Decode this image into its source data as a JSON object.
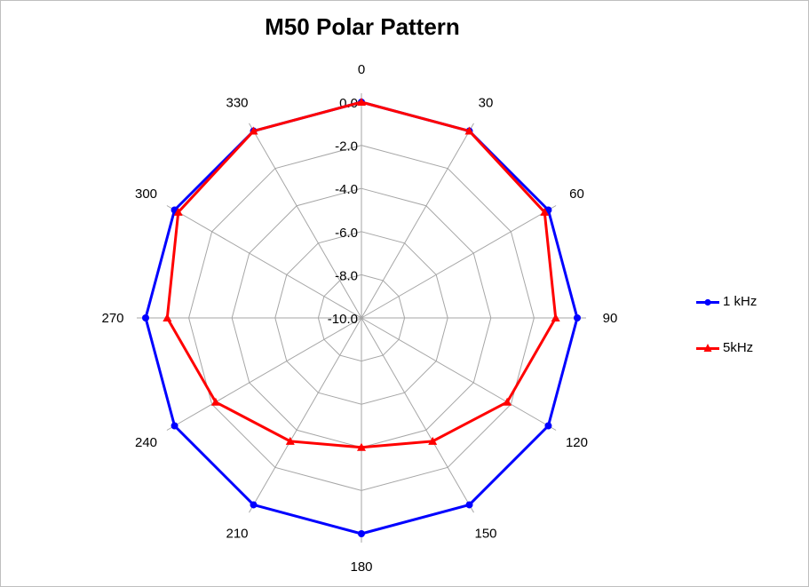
{
  "chart_data": {
    "type": "radar",
    "title": "M50 Polar Pattern",
    "angles": [
      0,
      30,
      60,
      90,
      120,
      150,
      180,
      210,
      240,
      270,
      300,
      330
    ],
    "angle_labels": [
      "0",
      "30",
      "60",
      "90",
      "120",
      "150",
      "180",
      "210",
      "240",
      "270",
      "300",
      "330"
    ],
    "radial_ticks": [
      "0.0",
      "-2.0",
      "-4.0",
      "-6.0",
      "-8.0",
      "-10.0"
    ],
    "radial_range": [
      -10,
      0
    ],
    "gridlines": true,
    "legend_position": "right",
    "series": [
      {
        "name": "1 kHz",
        "color": "#0000ff",
        "marker": "circle",
        "values": [
          0.0,
          0.0,
          0.0,
          0.0,
          0.0,
          0.0,
          0.0,
          0.0,
          0.0,
          0.0,
          0.0,
          0.0
        ]
      },
      {
        "name": "5kHz",
        "color": "#ff0000",
        "marker": "triangle",
        "values": [
          0.0,
          0.0,
          -0.2,
          -1.0,
          -2.2,
          -3.4,
          -4.0,
          -3.4,
          -2.2,
          -1.0,
          -0.2,
          0.0
        ]
      }
    ]
  }
}
